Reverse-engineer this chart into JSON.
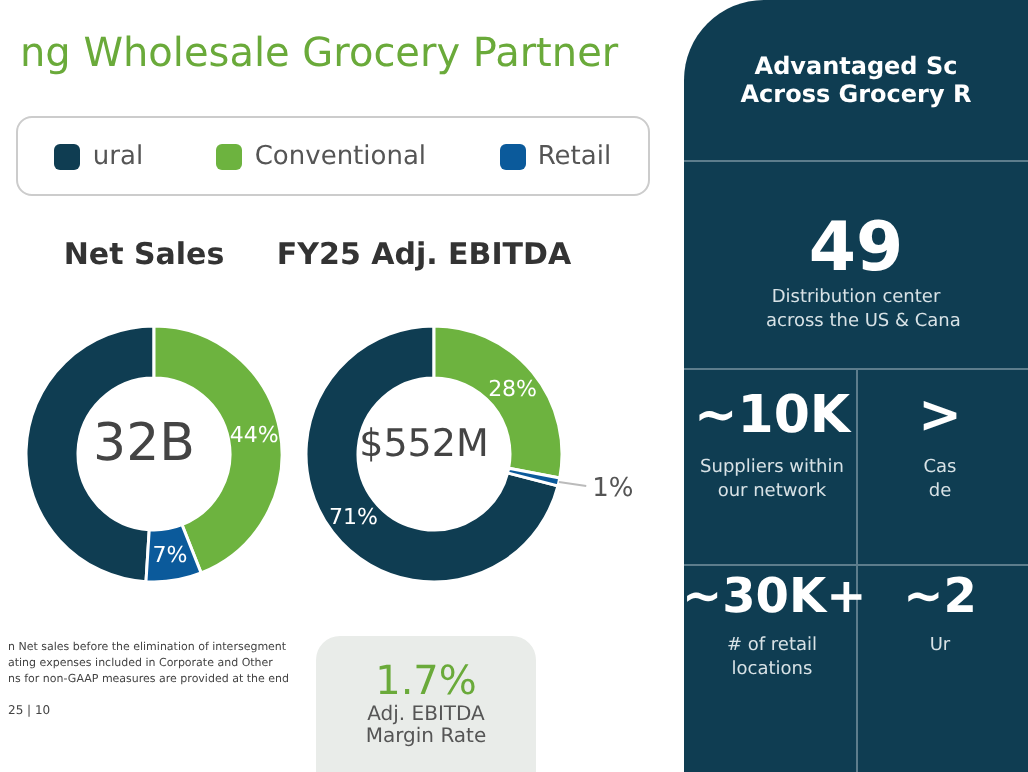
{
  "chart_data": [
    {
      "type": "donut",
      "title": "ng Wholesale Grocery Partner",
      "subtitle": "Net Sales",
      "categories": [
        "ural",
        "Conventional",
        "Retail"
      ],
      "values": [
        49,
        44,
        7
      ],
      "colors": [
        "#0f3d52",
        "#6db33f",
        "#0b5a9b"
      ],
      "value_labels": [
        null,
        "44%",
        "7%"
      ],
      "legend": "top",
      "annotations": [
        "32B",
        "n Net sales before the elimination of intersegment",
        "ating expenses included in Corporate and Other",
        "ns for non-GAAP measures are provided at the end",
        "25 | 10"
      ]
    },
    {
      "type": "donut",
      "title": "FY25 Adj. EBITDA",
      "values": [
        71,
        28,
        1
      ],
      "colors": [
        "#0f3d52",
        "#6db33f",
        "#0b5a9b"
      ],
      "value_labels": [
        "71%",
        "28%",
        "1%"
      ],
      "annotations": [
        "$552M",
        "1.7%",
        "Adj. EBITDA",
        "Margin Rate"
      ]
    },
    {
      "type": "other",
      "title": "Advantaged Sc",
      "subtitle": "Across Grocery R",
      "annotations": [
        "49",
        "Distribution center",
        "across the US & Cana",
        "~10K",
        "Suppliers within",
        "our network",
        ">",
        "Cas",
        "de",
        "~30K+",
        "# of retail",
        "locations",
        "~2",
        "Ur"
      ]
    }
  ]
}
